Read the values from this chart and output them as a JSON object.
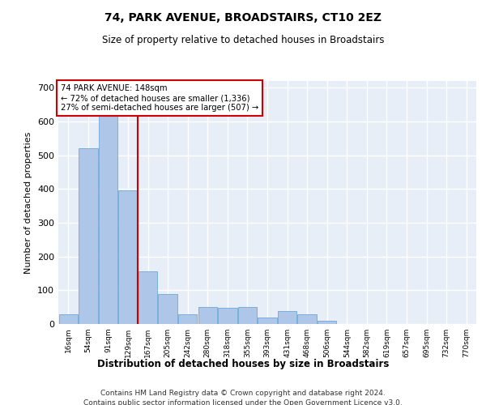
{
  "title1": "74, PARK AVENUE, BROADSTAIRS, CT10 2EZ",
  "title2": "Size of property relative to detached houses in Broadstairs",
  "xlabel": "Distribution of detached houses by size in Broadstairs",
  "ylabel": "Number of detached properties",
  "bar_labels": [
    "16sqm",
    "54sqm",
    "91sqm",
    "129sqm",
    "167sqm",
    "205sqm",
    "242sqm",
    "280sqm",
    "318sqm",
    "355sqm",
    "393sqm",
    "431sqm",
    "468sqm",
    "506sqm",
    "544sqm",
    "582sqm",
    "619sqm",
    "657sqm",
    "695sqm",
    "732sqm",
    "770sqm"
  ],
  "bar_values": [
    30,
    520,
    620,
    395,
    155,
    90,
    30,
    50,
    48,
    50,
    20,
    38,
    28,
    10,
    0,
    0,
    0,
    0,
    0,
    0,
    0
  ],
  "bar_color": "#aec6e8",
  "bar_edge_color": "#5a9fd4",
  "vline_pos": 3.5,
  "vline_color": "#cc0000",
  "annotation_text": "74 PARK AVENUE: 148sqm\n← 72% of detached houses are smaller (1,336)\n27% of semi-detached houses are larger (507) →",
  "annotation_box_color": "#ffffff",
  "annotation_box_edge": "#cc0000",
  "ylim": [
    0,
    720
  ],
  "yticks": [
    0,
    100,
    200,
    300,
    400,
    500,
    600,
    700
  ],
  "bg_color": "#e8eef7",
  "grid_color": "#ffffff",
  "footer1": "Contains HM Land Registry data © Crown copyright and database right 2024.",
  "footer2": "Contains public sector information licensed under the Open Government Licence v3.0."
}
